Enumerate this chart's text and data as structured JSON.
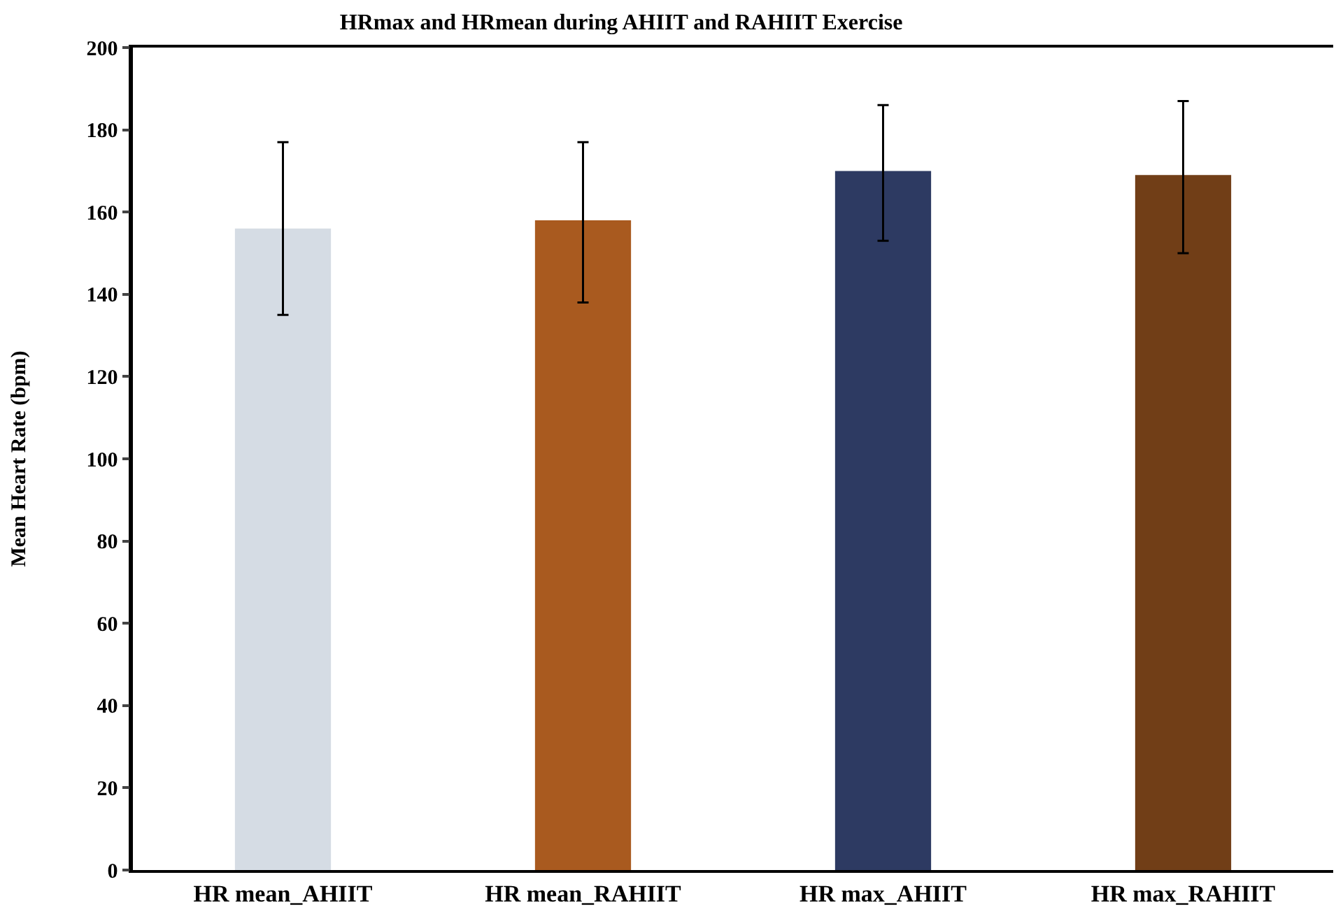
{
  "chart_data": {
    "type": "bar",
    "title": "HRmax and HRmean during AHIIT and RAHIIT Exercise",
    "ylabel": "Mean Heart Rate (bpm)",
    "categories": [
      "HR mean_AHIIT",
      "HR mean_RAHIIT",
      "HR max_AHIIT",
      "HR max_RAHIIT"
    ],
    "values": [
      156,
      158,
      170,
      169
    ],
    "colors": [
      "#d5dce4",
      "#a95a1f",
      "#2d3a62",
      "#713e17"
    ],
    "errors": [
      [
        135,
        177
      ],
      [
        138,
        177
      ],
      [
        153,
        186
      ],
      [
        150,
        187
      ]
    ],
    "ylim": [
      0,
      200
    ],
    "yticks": [
      0,
      20,
      40,
      60,
      80,
      100,
      120,
      140,
      160,
      180,
      200
    ],
    "grid": false
  }
}
